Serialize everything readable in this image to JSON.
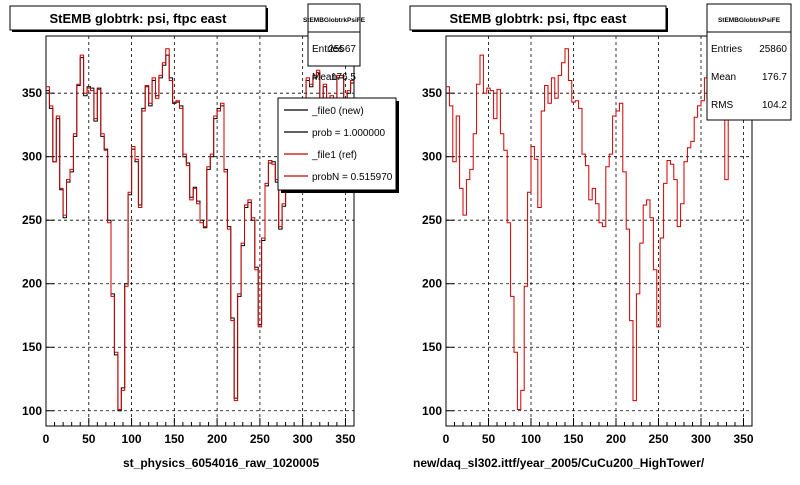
{
  "chart_data": [
    {
      "type": "line",
      "title": "StEMB globtrk: psi, ftpc east",
      "xlabel": "st_physics_6054016_raw_1020005",
      "xlim": [
        0,
        360
      ],
      "ylim": [
        88,
        395
      ],
      "x_ticks": [
        0,
        50,
        100,
        150,
        200,
        250,
        300,
        350
      ],
      "y_ticks": [
        100,
        150,
        200,
        250,
        300,
        350
      ],
      "grid": true,
      "stats": {
        "name": "StEMBGlobtrkPsiFE",
        "rows": [
          {
            "label": "Entries",
            "value": "25567"
          },
          {
            "label": "Mean",
            "value": "176.5"
          }
        ]
      },
      "legend": [
        {
          "label": "_file0 (new)",
          "color": "#000000"
        },
        {
          "label": "prob = 1.000000",
          "color": "#000000"
        },
        {
          "label": "_file1 (ref)",
          "color": "#cc0000"
        },
        {
          "label": "probN = 0.515970",
          "color": "#cc0000"
        }
      ],
      "bin_width": 4,
      "series": [
        {
          "name": "_file0 (new)",
          "color": "#000000",
          "values": [
            352,
            338,
            296,
            330,
            274,
            252,
            280,
            288,
            316,
            356,
            378,
            348,
            355,
            354,
            328,
            354,
            316,
            306,
            250,
            192,
            144,
            100,
            118,
            200,
            270,
            306,
            296,
            262,
            338,
            355,
            340,
            360,
            348,
            362,
            372,
            380,
            362,
            342,
            343,
            340,
            300,
            295,
            268,
            276,
            265,
            250,
            244,
            290,
            300,
            330,
            338,
            340,
            290,
            245,
            173,
            110,
            190,
            230,
            260,
            264,
            250,
            213,
            168,
            234,
            277,
            295,
            296,
            280,
            243,
            261,
            298,
            305,
            310,
            330,
            338,
            342,
            360,
            355,
            362,
            366,
            338,
            355,
            280,
            346,
            335,
            362,
            362,
            338,
            350,
            358
          ]
        },
        {
          "name": "_file1 (ref)",
          "color": "#cc0000",
          "values": [
            355,
            340,
            296,
            332,
            275,
            254,
            282,
            290,
            318,
            357,
            380,
            350,
            354,
            352,
            330,
            353,
            318,
            305,
            248,
            190,
            146,
            101,
            116,
            198,
            272,
            308,
            298,
            260,
            336,
            356,
            342,
            362,
            346,
            364,
            374,
            385,
            360,
            343,
            344,
            338,
            302,
            293,
            266,
            275,
            263,
            248,
            245,
            292,
            302,
            332,
            336,
            342,
            288,
            243,
            171,
            108,
            192,
            232,
            262,
            266,
            252,
            211,
            166,
            236,
            279,
            297,
            294,
            282,
            245,
            263,
            296,
            307,
            312,
            331,
            340,
            344,
            362,
            357,
            364,
            368,
            336,
            357,
            282,
            348,
            333,
            364,
            364,
            336,
            352,
            360
          ]
        }
      ]
    },
    {
      "type": "line",
      "title": "StEMB globtrk: psi, ftpc east",
      "xlabel": "new/daq_sl302.ittf/year_2005/CuCu200_HighTower/",
      "xlim": [
        0,
        360
      ],
      "ylim": [
        88,
        395
      ],
      "x_ticks": [
        0,
        50,
        100,
        150,
        200,
        250,
        300,
        350
      ],
      "y_ticks": [
        100,
        150,
        200,
        250,
        300,
        350
      ],
      "grid": true,
      "stats": {
        "name": "StEMBGlobtrkPsiFE",
        "rows": [
          {
            "label": "Entries",
            "value": "25860"
          },
          {
            "label": "Mean",
            "value": "176.7"
          },
          {
            "label": "RMS",
            "value": "104.2"
          }
        ]
      },
      "legend": [],
      "bin_width": 4,
      "series": [
        {
          "name": "",
          "color": "#cc0000",
          "values": [
            355,
            340,
            296,
            332,
            275,
            254,
            282,
            290,
            318,
            357,
            380,
            350,
            354,
            352,
            330,
            353,
            318,
            305,
            248,
            190,
            146,
            101,
            116,
            198,
            272,
            308,
            298,
            260,
            336,
            356,
            342,
            362,
            346,
            364,
            374,
            385,
            360,
            343,
            344,
            338,
            302,
            293,
            266,
            275,
            263,
            248,
            245,
            292,
            302,
            332,
            336,
            342,
            288,
            243,
            171,
            108,
            192,
            232,
            262,
            266,
            252,
            211,
            166,
            236,
            279,
            297,
            294,
            282,
            245,
            263,
            296,
            307,
            312,
            331,
            340,
            344,
            362,
            357,
            364,
            368,
            336,
            357,
            282,
            348,
            333,
            364,
            364,
            336,
            352,
            360
          ]
        }
      ]
    }
  ]
}
